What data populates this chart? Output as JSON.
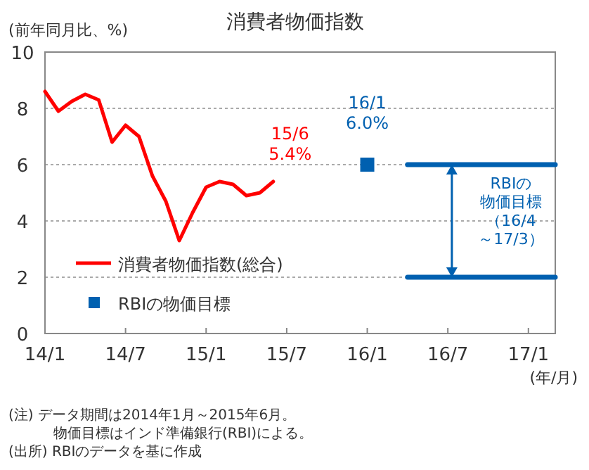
{
  "chart_data": {
    "type": "line",
    "title": "消費者物価指数",
    "ylabel": "(前年同月比、%)",
    "xlabel": "(年/月)",
    "xlim": [
      "2014-01",
      "2017-03"
    ],
    "ylim": [
      0,
      10
    ],
    "yticks": [
      0,
      2,
      4,
      6,
      8,
      10
    ],
    "xticks": [
      {
        "value": "2014-01",
        "label": "14/1"
      },
      {
        "value": "2014-07",
        "label": "14/7"
      },
      {
        "value": "2015-01",
        "label": "15/1"
      },
      {
        "value": "2015-07",
        "label": "15/7"
      },
      {
        "value": "2016-01",
        "label": "16/1"
      },
      {
        "value": "2016-07",
        "label": "16/7"
      },
      {
        "value": "2017-01",
        "label": "17/1"
      }
    ],
    "grid": "y",
    "legend": "bottom left",
    "series": [
      {
        "name": "消費者物価指数(総合)",
        "color": "#ff0000",
        "line_style": "solid",
        "x": [
          "2014-01",
          "2014-02",
          "2014-03",
          "2014-04",
          "2014-05",
          "2014-06",
          "2014-07",
          "2014-08",
          "2014-09",
          "2014-10",
          "2014-11",
          "2014-12",
          "2015-01",
          "2015-02",
          "2015-03",
          "2015-04",
          "2015-05",
          "2015-06"
        ],
        "values": [
          8.6,
          7.9,
          8.25,
          8.5,
          8.3,
          6.8,
          7.4,
          7.0,
          5.6,
          4.7,
          3.3,
          4.3,
          5.2,
          5.4,
          5.3,
          4.9,
          5.0,
          5.4
        ]
      },
      {
        "name": "RBIの物価目標",
        "type": "scatter",
        "marker": "square",
        "color": "#0060b0",
        "x": [
          "2016-01"
        ],
        "values": [
          6.0
        ]
      },
      {
        "color": "#0060b0",
        "line_style": "solid",
        "x": [
          "2016-04",
          "2017-03"
        ],
        "values": [
          6,
          6
        ]
      },
      {
        "color": "#0060b0",
        "line_style": "solid",
        "x": [
          "2016-04",
          "2017-03"
        ],
        "values": [
          2,
          2
        ]
      }
    ],
    "annotations": [
      {
        "text": "15/6\n5.4%",
        "x": "2015-06",
        "y": 5.4
      },
      {
        "text": "16/1\n6.0%",
        "x": "2016-01",
        "y": 6.0
      },
      "RBIの物価目標（16/4～17/3）",
      "(注) データ期間は2014年1月～2015年6月。",
      "物価目標はインド準備銀行(RBI)による。",
      "(出所) RBIのデータを基に作成"
    ]
  }
}
